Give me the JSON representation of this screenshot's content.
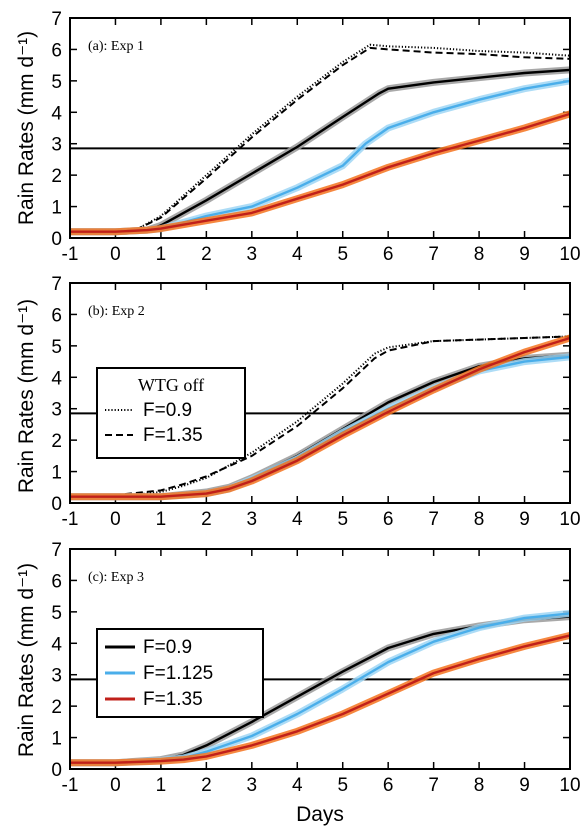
{
  "colors": {
    "black": "#000000",
    "blue": "#4aaeea",
    "red": "#c0201a",
    "grey_envelope": "#9a9a9a",
    "lightblue_envelope": "#9fd6f5",
    "orange_envelope": "#f5731f"
  },
  "chart_data": [
    {
      "type": "line",
      "panel_label": "(a): Exp 1",
      "ylabel": "Rain Rates (mm d⁻¹)",
      "xlabel": "",
      "xlim": [
        -1,
        10
      ],
      "ylim": [
        0,
        7
      ],
      "xticks": [
        "-1",
        "0",
        "1",
        "2",
        "3",
        "4",
        "5",
        "6",
        "7",
        "8",
        "9",
        "10"
      ],
      "yticks": [
        "0",
        "1",
        "2",
        "3",
        "4",
        "5",
        "6",
        "7"
      ],
      "reference_line": 2.85,
      "series": [
        {
          "style": "dotted",
          "color": "#000000",
          "x": [
            -1,
            0,
            0.5,
            1,
            2,
            3,
            4,
            5,
            5.6,
            6,
            7,
            8,
            9,
            10
          ],
          "y": [
            0.25,
            0.25,
            0.3,
            0.7,
            2.0,
            3.3,
            4.5,
            5.6,
            6.15,
            6.1,
            6.05,
            5.95,
            5.9,
            5.8
          ]
        },
        {
          "style": "dashed",
          "color": "#000000",
          "x": [
            -1,
            0,
            0.5,
            1,
            2,
            3,
            4,
            5,
            5.6,
            6,
            7,
            8,
            9,
            10
          ],
          "y": [
            0.2,
            0.2,
            0.3,
            0.65,
            1.9,
            3.2,
            4.4,
            5.5,
            6.05,
            6.0,
            5.9,
            5.85,
            5.75,
            5.7
          ]
        },
        {
          "style": "solid",
          "color": "#000000",
          "x": [
            -1,
            0,
            0.7,
            1,
            2,
            3,
            4,
            5,
            5.8,
            6,
            7,
            8,
            9,
            10
          ],
          "y": [
            0.2,
            0.2,
            0.25,
            0.4,
            1.2,
            2.05,
            2.9,
            3.85,
            4.6,
            4.75,
            4.95,
            5.1,
            5.25,
            5.35
          ]
        },
        {
          "style": "solid",
          "color": "#4aaeea",
          "x": [
            -1,
            0,
            0.7,
            1,
            2,
            3,
            4,
            5,
            5.5,
            6,
            7,
            8,
            9,
            10
          ],
          "y": [
            0.2,
            0.2,
            0.25,
            0.3,
            0.7,
            1.0,
            1.6,
            2.3,
            3.0,
            3.5,
            4.0,
            4.4,
            4.75,
            5.0
          ]
        },
        {
          "style": "solid",
          "color": "#c0201a",
          "x": [
            -1,
            0,
            0.7,
            1,
            2,
            3,
            4,
            5,
            6,
            7,
            8,
            9,
            10
          ],
          "y": [
            0.2,
            0.2,
            0.25,
            0.3,
            0.55,
            0.8,
            1.25,
            1.7,
            2.25,
            2.7,
            3.1,
            3.5,
            3.95
          ]
        }
      ]
    },
    {
      "type": "line",
      "panel_label": "(b): Exp 2",
      "ylabel": "Rain Rates (mm d⁻¹)",
      "xlabel": "",
      "xlim": [
        -1,
        10
      ],
      "ylim": [
        0,
        7
      ],
      "xticks": [
        "-1",
        "0",
        "1",
        "2",
        "3",
        "4",
        "5",
        "6",
        "7",
        "8",
        "9",
        "10"
      ],
      "yticks": [
        "0",
        "1",
        "2",
        "3",
        "4",
        "5",
        "6",
        "7"
      ],
      "reference_line": 2.85,
      "legend": {
        "title": "WTG off",
        "entries": [
          "F=0.9",
          "F=1.35"
        ],
        "styles": [
          "dotted",
          "dashed"
        ]
      },
      "series": [
        {
          "style": "dotted",
          "color": "#000000",
          "x": [
            -1,
            0,
            1,
            1.5,
            2,
            3,
            4,
            5,
            5.7,
            6,
            7,
            8,
            9,
            10
          ],
          "y": [
            0.2,
            0.2,
            0.35,
            0.55,
            0.8,
            1.6,
            2.6,
            3.8,
            4.75,
            4.95,
            5.15,
            5.2,
            5.25,
            5.3
          ]
        },
        {
          "style": "dashed",
          "color": "#000000",
          "x": [
            -1,
            0,
            1,
            1.5,
            2,
            3,
            4,
            5,
            5.7,
            6,
            7,
            8,
            9,
            10
          ],
          "y": [
            0.25,
            0.25,
            0.4,
            0.6,
            0.85,
            1.5,
            2.45,
            3.65,
            4.6,
            4.85,
            5.15,
            5.2,
            5.25,
            5.3
          ]
        },
        {
          "style": "solid",
          "color": "#000000",
          "x": [
            -1,
            0,
            1,
            2,
            2.5,
            3,
            4,
            5,
            6,
            7,
            8,
            9,
            10
          ],
          "y": [
            0.2,
            0.2,
            0.2,
            0.35,
            0.5,
            0.8,
            1.5,
            2.35,
            3.2,
            3.85,
            4.35,
            4.6,
            4.7
          ]
        },
        {
          "style": "solid",
          "color": "#4aaeea",
          "x": [
            -1,
            0,
            1,
            2,
            2.5,
            3,
            4,
            5,
            6,
            7,
            8,
            9,
            10
          ],
          "y": [
            0.2,
            0.2,
            0.2,
            0.3,
            0.45,
            0.75,
            1.4,
            2.25,
            3.0,
            3.65,
            4.2,
            4.5,
            4.65
          ]
        },
        {
          "style": "solid",
          "color": "#c0201a",
          "x": [
            -1,
            0,
            1,
            2,
            2.5,
            3,
            4,
            5,
            6,
            7,
            8,
            9,
            10
          ],
          "y": [
            0.2,
            0.2,
            0.2,
            0.3,
            0.45,
            0.7,
            1.35,
            2.15,
            2.9,
            3.6,
            4.25,
            4.8,
            5.25
          ]
        }
      ]
    },
    {
      "type": "line",
      "panel_label": "(c): Exp 3",
      "ylabel": "Rain Rates (mm d⁻¹)",
      "xlabel": "Days",
      "xlim": [
        -1,
        10
      ],
      "ylim": [
        0,
        7
      ],
      "xticks": [
        "-1",
        "0",
        "1",
        "2",
        "3",
        "4",
        "5",
        "6",
        "7",
        "8",
        "9",
        "10"
      ],
      "yticks": [
        "0",
        "1",
        "2",
        "3",
        "4",
        "5",
        "6",
        "7"
      ],
      "reference_line": 2.85,
      "legend": {
        "title": "",
        "entries": [
          "F=0.9",
          "F=1.125",
          "F=1.35"
        ],
        "styles": [
          "solid",
          "solid",
          "solid"
        ],
        "colors": [
          "#000000",
          "#4aaeea",
          "#c0201a"
        ]
      },
      "series": [
        {
          "style": "solid",
          "color": "#000000",
          "x": [
            -1,
            0,
            1,
            1.5,
            2,
            3,
            4,
            5,
            6,
            7,
            8,
            9,
            10
          ],
          "y": [
            0.2,
            0.2,
            0.3,
            0.45,
            0.75,
            1.5,
            2.3,
            3.1,
            3.85,
            4.3,
            4.55,
            4.75,
            4.85
          ]
        },
        {
          "style": "solid",
          "color": "#4aaeea",
          "x": [
            -1,
            0,
            1,
            1.5,
            2,
            3,
            4,
            5,
            6,
            7,
            8,
            9,
            10
          ],
          "y": [
            0.2,
            0.2,
            0.27,
            0.35,
            0.55,
            1.05,
            1.75,
            2.55,
            3.4,
            4.05,
            4.5,
            4.8,
            4.95
          ]
        },
        {
          "style": "solid",
          "color": "#c0201a",
          "x": [
            -1,
            0,
            1,
            1.5,
            2,
            3,
            4,
            5,
            6,
            7,
            8,
            9,
            10
          ],
          "y": [
            0.2,
            0.2,
            0.25,
            0.3,
            0.4,
            0.75,
            1.2,
            1.75,
            2.4,
            3.05,
            3.5,
            3.9,
            4.25
          ]
        }
      ]
    }
  ]
}
